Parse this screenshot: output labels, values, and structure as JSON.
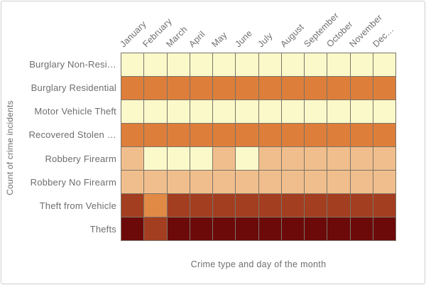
{
  "style": {
    "text_color": "#6e6e6e",
    "gridline_color": "#7a7468",
    "card_border_color": "#cfcfcf",
    "background_color": "#ffffff"
  },
  "chart_data": {
    "type": "heatmap",
    "title": "",
    "xlabel": "Crime type and day of the month",
    "ylabel": "Count of crime incidents",
    "legend": "none",
    "x_categories": [
      "January",
      "February",
      "March",
      "April",
      "May",
      "June",
      "July",
      "August",
      "September",
      "October",
      "November",
      "Dec…"
    ],
    "y_categories": [
      "Burglary Non-Resi…",
      "Burglary Residential",
      "Motor Vehicle Theft",
      "Recovered Stolen …",
      "Robbery Firearm",
      "Robbery No Firearm",
      "Theft from Vehicle",
      "Thefts"
    ],
    "palette": {
      "1": "#FBF9CA",
      "2": "#F0BE8C",
      "3": "#E18A45",
      "4": "#DD7E3B",
      "5": "#A33E20",
      "6": "#6C0A0A"
    },
    "palette_order_note": "1 = lightest (fewest incidents), 6 = darkest (most incidents)",
    "cell_levels": [
      [
        1,
        1,
        1,
        1,
        1,
        1,
        1,
        1,
        1,
        1,
        1,
        1
      ],
      [
        4,
        4,
        4,
        4,
        4,
        4,
        4,
        4,
        4,
        4,
        4,
        4
      ],
      [
        1,
        1,
        1,
        1,
        1,
        1,
        1,
        1,
        1,
        1,
        1,
        1
      ],
      [
        4,
        4,
        4,
        4,
        4,
        4,
        4,
        4,
        4,
        4,
        4,
        4
      ],
      [
        2,
        1,
        1,
        1,
        2,
        1,
        2,
        2,
        2,
        2,
        2,
        2
      ],
      [
        2,
        2,
        2,
        2,
        2,
        2,
        2,
        2,
        2,
        2,
        2,
        2
      ],
      [
        5,
        3,
        5,
        5,
        5,
        5,
        5,
        5,
        5,
        5,
        5,
        5
      ],
      [
        6,
        5,
        6,
        6,
        6,
        6,
        6,
        6,
        6,
        6,
        6,
        6
      ]
    ]
  }
}
